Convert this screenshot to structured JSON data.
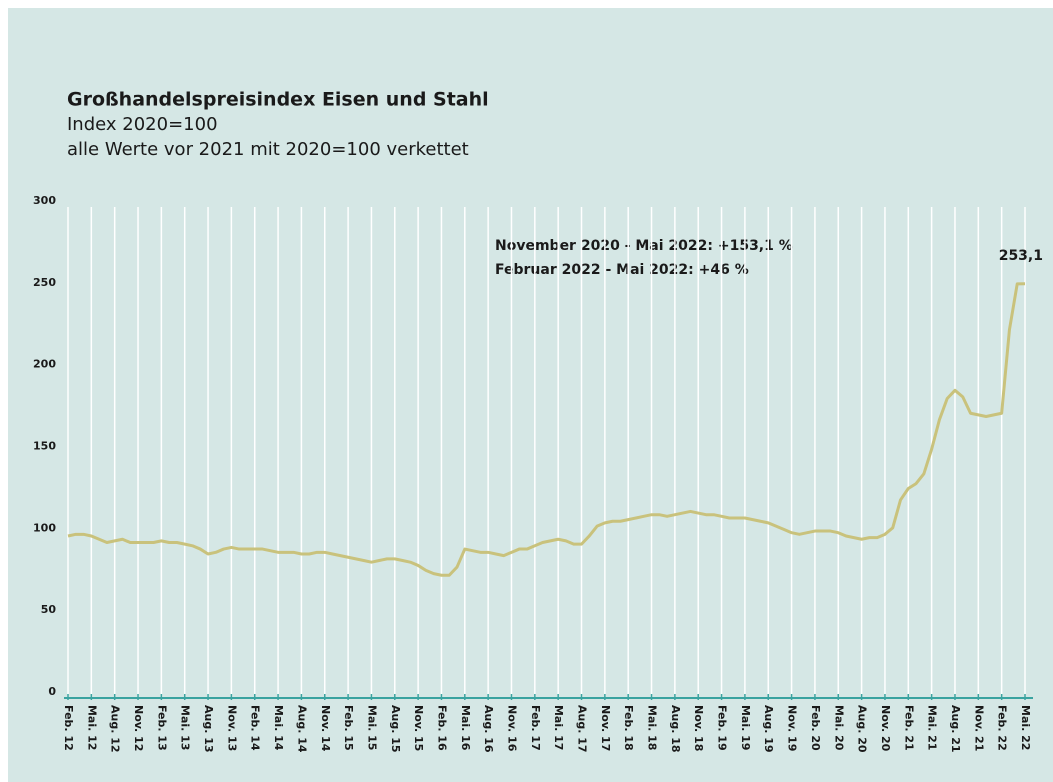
{
  "chart_data": {
    "type": "line",
    "title": "Großhandelspreisindex Eisen und Stahl",
    "subtitle": [
      "Index 2020=100",
      "alle Werte vor 2021 mit 2020=100 verkettet"
    ],
    "annotations": [
      "November 2020 - Mai 2022: +153,1 %",
      "Februar 2022 - Mai 2022: +46 %"
    ],
    "categories": [
      "Feb. 12",
      null,
      null,
      "Mai. 12",
      null,
      null,
      "Aug. 12",
      null,
      null,
      "Nov. 12",
      null,
      null,
      "Feb. 13",
      null,
      null,
      "Mai. 13",
      null,
      null,
      "Aug. 13",
      null,
      null,
      "Nov. 13",
      null,
      null,
      "Feb. 14",
      null,
      null,
      "Mai. 14",
      null,
      null,
      "Aug. 14",
      null,
      null,
      "Nov. 14",
      null,
      null,
      "Feb. 15",
      null,
      null,
      "Mai. 15",
      null,
      null,
      "Aug. 15",
      null,
      null,
      "Nov. 15",
      null,
      null,
      "Feb. 16",
      null,
      null,
      "Mai. 16",
      null,
      null,
      "Aug. 16",
      null,
      null,
      "Nov. 16",
      null,
      null,
      "Feb. 17",
      null,
      null,
      "Mai. 17",
      null,
      null,
      "Aug. 17",
      null,
      null,
      "Nov. 17",
      null,
      null,
      "Feb. 18",
      null,
      null,
      "Mai. 18",
      null,
      null,
      "Aug. 18",
      null,
      null,
      "Nov. 18",
      null,
      null,
      "Feb. 19",
      null,
      null,
      "Mai. 19",
      null,
      null,
      "Aug. 19",
      null,
      null,
      "Nov. 19",
      null,
      null,
      "Feb. 20",
      null,
      null,
      "Mai. 20",
      null,
      null,
      "Aug. 20",
      null,
      null,
      "Nov. 20",
      null,
      null,
      "Feb. 21",
      null,
      null,
      "Mai. 21",
      null,
      null,
      "Aug. 21",
      null,
      null,
      "Nov. 21",
      null,
      null,
      "Feb. 22",
      null,
      null,
      "Mai. 22"
    ],
    "series": [
      {
        "color": "#c9c27c",
        "end_label": "253,1",
        "values": [
          99,
          100,
          100,
          99,
          97,
          95,
          96,
          97,
          95,
          95,
          95,
          95,
          96,
          95,
          95,
          94,
          93,
          91,
          88,
          89,
          91,
          92,
          91,
          91,
          91,
          91,
          90,
          89,
          89,
          89,
          88,
          88,
          89,
          89,
          88,
          87,
          86,
          85,
          84,
          83,
          84,
          85,
          85,
          84,
          83,
          81,
          78,
          76,
          75,
          75,
          80,
          91,
          90,
          89,
          89,
          88,
          87,
          89,
          91,
          91,
          93,
          95,
          96,
          97,
          96,
          94,
          94,
          99,
          105,
          107,
          108,
          108,
          109,
          110,
          111,
          112,
          112,
          111,
          112,
          113,
          114,
          113,
          112,
          112,
          111,
          110,
          110,
          110,
          109,
          108,
          107,
          105,
          103,
          101,
          100,
          101,
          102,
          102,
          102,
          101,
          99,
          98,
          97,
          98,
          98,
          100,
          104,
          121,
          128,
          131,
          137,
          152,
          170,
          183,
          188,
          184,
          174,
          173,
          172,
          173,
          174,
          225,
          253,
          253.1
        ]
      }
    ],
    "ylim": [
      0,
      300
    ],
    "yticks": [
      0,
      50,
      100,
      150,
      200,
      250,
      300
    ]
  }
}
